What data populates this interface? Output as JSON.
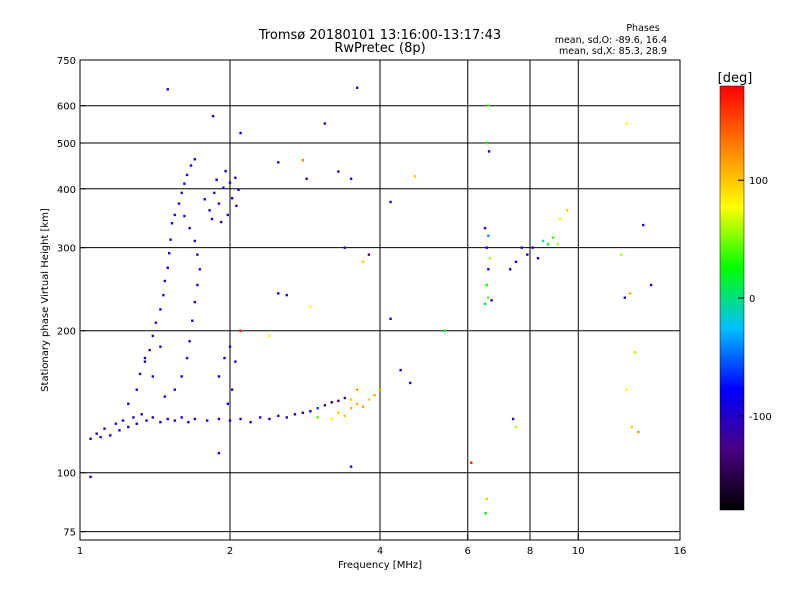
{
  "chart_data": {
    "type": "scatter",
    "title": "Tromsø 20180101 13:16:00-13:17:43",
    "subtitle": "RwPretec (8p)",
    "xlabel": "Frequency [MHz]",
    "ylabel": "Stationary phase Virtual Height [km]",
    "x_scale": "log",
    "y_scale": "log",
    "xlim": [
      1,
      16
    ],
    "ylim": [
      72,
      750
    ],
    "x_ticks": [
      1,
      2,
      4,
      6,
      8,
      10,
      16
    ],
    "x_tick_labels": [
      "1",
      "2",
      "4",
      "6",
      "8",
      "10",
      "16"
    ],
    "y_ticks": [
      75,
      100,
      200,
      300,
      400,
      500,
      600,
      750
    ],
    "y_tick_labels": [
      "75",
      "100",
      "200",
      "300",
      "400",
      "500",
      "600",
      "750"
    ],
    "grid": true,
    "legend": {
      "title": "Phases",
      "lines": [
        "mean, sd,O: -89.6, 16.4",
        "mean, sd,X:  85.3, 28.9"
      ]
    },
    "colorbar": {
      "label": "[deg]",
      "min": -180,
      "max": 180,
      "ticks": [
        -100,
        0,
        100
      ],
      "tick_labels": [
        "-100",
        "0",
        "100"
      ],
      "colors": [
        "#000000",
        "#4b0082",
        "#0000ff",
        "#00c0ff",
        "#00ff00",
        "#ffff00",
        "#ff8000",
        "#ff0000"
      ]
    },
    "series": [
      {
        "points": [
          [
            1.05,
            118,
            -105
          ],
          [
            1.08,
            121,
            -95
          ],
          [
            1.1,
            119,
            -100
          ],
          [
            1.12,
            124,
            -110
          ],
          [
            1.15,
            120,
            -90
          ],
          [
            1.18,
            127,
            -105
          ],
          [
            1.2,
            123,
            -100
          ],
          [
            1.22,
            129,
            -95
          ],
          [
            1.25,
            125,
            -110
          ],
          [
            1.28,
            131,
            -100
          ],
          [
            1.3,
            127,
            -105
          ],
          [
            1.33,
            133,
            -95
          ],
          [
            1.36,
            129,
            -100
          ],
          [
            1.4,
            131,
            -110
          ],
          [
            1.45,
            128,
            -100
          ],
          [
            1.5,
            130,
            -95
          ],
          [
            1.55,
            129,
            -105
          ],
          [
            1.6,
            131,
            -100
          ],
          [
            1.65,
            128,
            -90
          ],
          [
            1.7,
            130,
            -100
          ],
          [
            1.8,
            129,
            -105
          ],
          [
            1.9,
            130,
            -95
          ],
          [
            2.0,
            129,
            -100
          ],
          [
            2.1,
            130,
            -110
          ],
          [
            2.2,
            128,
            -100
          ],
          [
            2.3,
            131,
            -95
          ],
          [
            2.4,
            130,
            -100
          ],
          [
            2.5,
            132,
            -105
          ],
          [
            2.6,
            131,
            -100
          ],
          [
            2.7,
            133,
            -90
          ],
          [
            2.8,
            134,
            -100
          ],
          [
            2.9,
            135,
            -80
          ],
          [
            3.0,
            137,
            -60
          ],
          [
            3.1,
            139,
            -120
          ],
          [
            3.2,
            141,
            -150
          ],
          [
            3.3,
            142,
            -140
          ],
          [
            3.4,
            144,
            -130
          ],
          [
            3.0,
            131,
            45
          ],
          [
            3.2,
            130,
            80
          ],
          [
            3.3,
            134,
            95
          ],
          [
            3.4,
            132,
            100
          ],
          [
            3.5,
            137,
            110
          ],
          [
            3.6,
            140,
            105
          ],
          [
            3.7,
            138,
            115
          ],
          [
            3.8,
            143,
            100
          ],
          [
            3.9,
            146,
            110
          ],
          [
            4.0,
            150,
            120
          ],
          [
            3.6,
            150,
            115
          ],
          [
            3.5,
            143,
            100
          ]
        ]
      },
      {
        "points": [
          [
            1.25,
            140,
            -100
          ],
          [
            1.3,
            150,
            -95
          ],
          [
            1.32,
            162,
            -105
          ],
          [
            1.35,
            172,
            -100
          ],
          [
            1.38,
            182,
            -110
          ],
          [
            1.4,
            195,
            -100
          ],
          [
            1.42,
            208,
            -95
          ],
          [
            1.45,
            222,
            -100
          ],
          [
            1.47,
            238,
            -105
          ],
          [
            1.48,
            255,
            -100
          ],
          [
            1.5,
            272,
            -90
          ],
          [
            1.51,
            292,
            -100
          ],
          [
            1.52,
            312,
            -105
          ],
          [
            1.53,
            338,
            -100
          ],
          [
            1.55,
            352,
            -95
          ],
          [
            1.58,
            372,
            -100
          ],
          [
            1.6,
            392,
            -110
          ],
          [
            1.62,
            410,
            -100
          ],
          [
            1.64,
            428,
            -95
          ],
          [
            1.67,
            448,
            -100
          ],
          [
            1.7,
            462,
            -105
          ],
          [
            1.62,
            350,
            -100
          ],
          [
            1.66,
            330,
            -95
          ],
          [
            1.7,
            310,
            -105
          ],
          [
            1.72,
            290,
            -100
          ],
          [
            1.74,
            270,
            -110
          ],
          [
            1.72,
            250,
            -100
          ],
          [
            1.7,
            230,
            -95
          ],
          [
            1.68,
            210,
            -100
          ],
          [
            1.66,
            190,
            -105
          ],
          [
            1.64,
            175,
            -100
          ],
          [
            1.6,
            160,
            -90
          ],
          [
            1.55,
            150,
            -100
          ],
          [
            1.48,
            145,
            -105
          ],
          [
            1.4,
            160,
            -100
          ],
          [
            1.35,
            175,
            -95
          ],
          [
            1.45,
            185,
            -110
          ]
        ]
      },
      {
        "points": [
          [
            1.78,
            380,
            -100
          ],
          [
            1.82,
            360,
            -95
          ],
          [
            1.86,
            392,
            -105
          ],
          [
            1.9,
            372,
            -100
          ],
          [
            1.94,
            402,
            -110
          ],
          [
            1.98,
            352,
            -100
          ],
          [
            2.0,
            412,
            -95
          ],
          [
            2.02,
            382,
            -100
          ],
          [
            2.05,
            422,
            -105
          ],
          [
            2.08,
            398,
            -100
          ],
          [
            1.88,
            418,
            -90
          ],
          [
            1.96,
            436,
            -100
          ],
          [
            1.84,
            345,
            -105
          ],
          [
            1.92,
            340,
            -100
          ],
          [
            2.06,
            368,
            -95
          ]
        ]
      },
      {
        "points": [
          [
            1.9,
            160,
            -100
          ],
          [
            1.95,
            175,
            -95
          ],
          [
            2.0,
            185,
            -105
          ],
          [
            2.05,
            172,
            -100
          ],
          [
            2.02,
            150,
            -110
          ],
          [
            1.98,
            140,
            -100
          ]
        ]
      },
      {
        "points": [
          [
            6.5,
            330,
            -100
          ],
          [
            6.55,
            300,
            -95
          ],
          [
            6.6,
            270,
            -105
          ],
          [
            6.55,
            250,
            30
          ],
          [
            6.6,
            235,
            45
          ],
          [
            6.5,
            228,
            10
          ],
          [
            6.65,
            285,
            60
          ],
          [
            6.7,
            232,
            -100
          ],
          [
            6.6,
            318,
            -40
          ],
          [
            6.62,
            480,
            -100
          ],
          [
            6.55,
            500,
            20
          ],
          [
            6.6,
            600,
            40
          ],
          [
            7.3,
            270,
            -100
          ],
          [
            7.5,
            280,
            -95
          ],
          [
            7.7,
            300,
            -105
          ],
          [
            7.9,
            290,
            -100
          ],
          [
            8.1,
            300,
            -110
          ],
          [
            8.3,
            285,
            -100
          ],
          [
            8.5,
            310,
            0
          ],
          [
            8.7,
            305,
            20
          ],
          [
            8.9,
            315,
            40
          ],
          [
            9.1,
            305,
            60
          ],
          [
            9.2,
            345,
            80
          ],
          [
            9.5,
            360,
            100
          ]
        ]
      },
      {
        "points": [
          [
            1.5,
            650,
            -100
          ],
          [
            1.85,
            570,
            -100
          ],
          [
            2.1,
            525,
            -95
          ],
          [
            2.5,
            455,
            -105
          ],
          [
            2.8,
            460,
            130
          ],
          [
            2.85,
            420,
            -100
          ],
          [
            3.1,
            550,
            -100
          ],
          [
            3.3,
            435,
            -100
          ],
          [
            3.5,
            420,
            -100
          ],
          [
            3.6,
            655,
            -110
          ],
          [
            2.5,
            240,
            -100
          ],
          [
            2.6,
            238,
            -100
          ],
          [
            2.9,
            225,
            80
          ],
          [
            3.4,
            300,
            -100
          ],
          [
            3.7,
            280,
            100
          ],
          [
            3.8,
            290,
            -120
          ],
          [
            4.2,
            375,
            -100
          ],
          [
            4.7,
            425,
            100
          ],
          [
            4.4,
            165,
            -100
          ],
          [
            4.6,
            155,
            -100
          ],
          [
            5.4,
            200,
            20
          ],
          [
            6.1,
            105,
            170
          ],
          [
            6.55,
            88,
            100
          ],
          [
            6.52,
            82,
            20
          ],
          [
            7.4,
            130,
            -100
          ],
          [
            7.5,
            125,
            60
          ],
          [
            12.5,
            550,
            80
          ],
          [
            13.5,
            335,
            -100
          ],
          [
            12.2,
            290,
            60
          ],
          [
            12.4,
            235,
            -100
          ],
          [
            12.7,
            240,
            110
          ],
          [
            14.0,
            250,
            -100
          ],
          [
            13.0,
            180,
            60
          ],
          [
            12.5,
            150,
            80
          ],
          [
            12.8,
            125,
            100
          ],
          [
            13.2,
            122,
            120
          ],
          [
            1.05,
            98,
            -100
          ],
          [
            1.9,
            110,
            -100
          ],
          [
            3.5,
            103,
            -100
          ],
          [
            2.1,
            200,
            170
          ],
          [
            4.2,
            212,
            -100
          ],
          [
            2.4,
            195,
            80
          ]
        ]
      }
    ]
  }
}
